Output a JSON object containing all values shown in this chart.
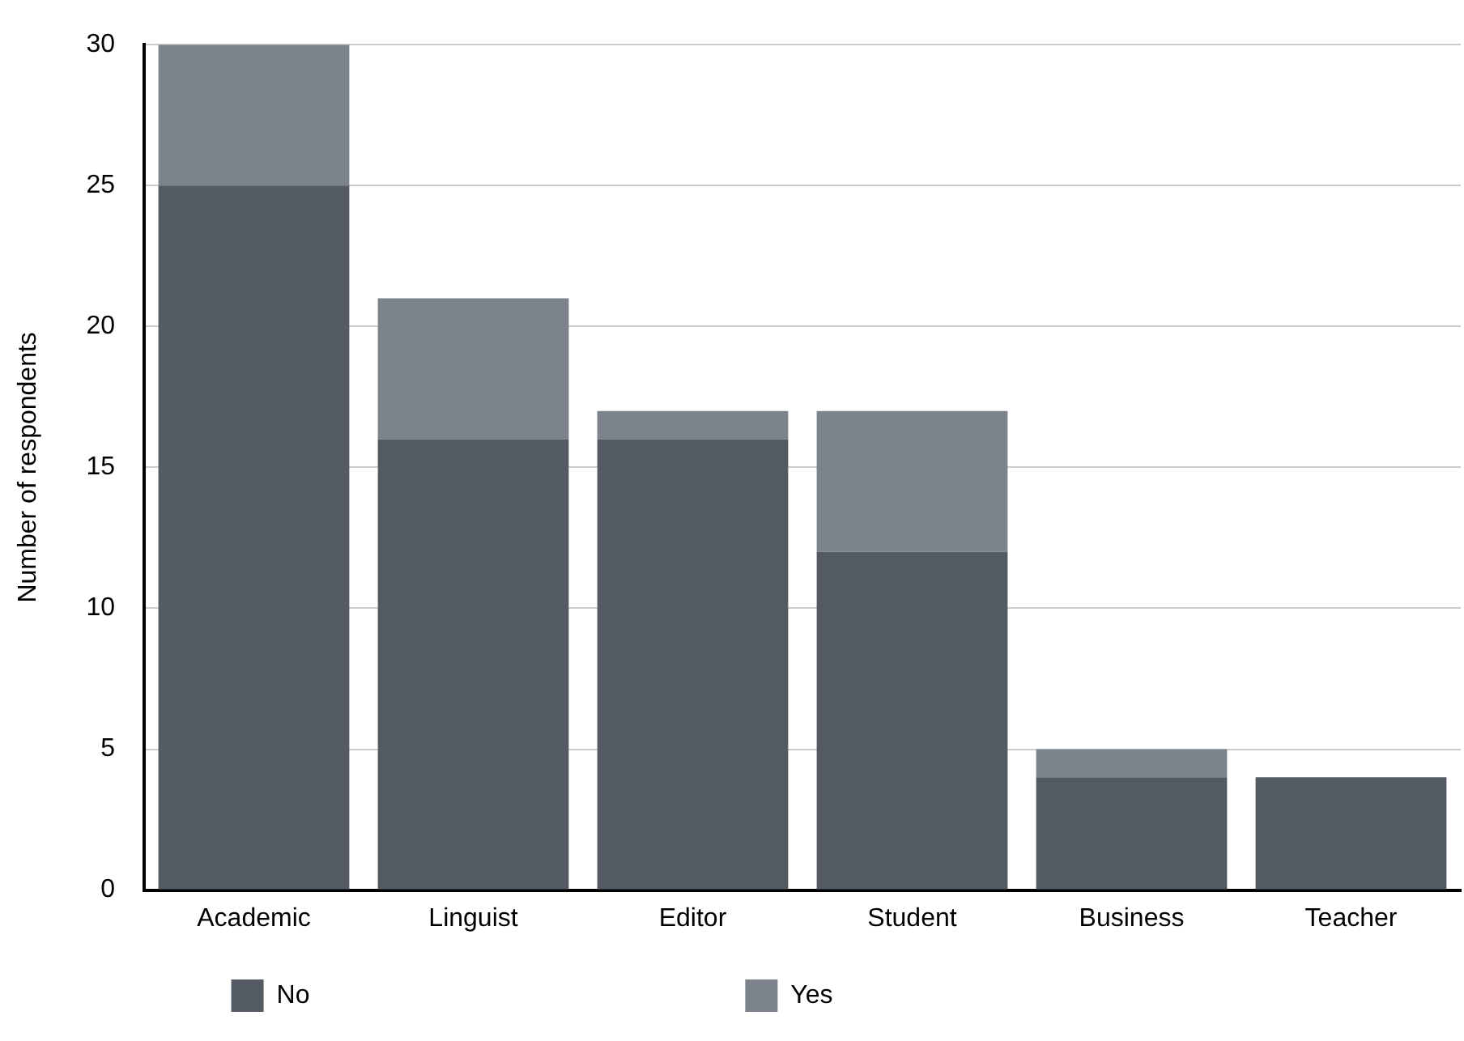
{
  "chart_data": {
    "type": "bar",
    "stacked": true,
    "ylabel": "Number of respondents",
    "categories": [
      "Academic",
      "Linguist",
      "Editor",
      "Student",
      "Business",
      "Teacher"
    ],
    "series": [
      {
        "name": "No",
        "color": "#545a61",
        "values": [
          25,
          16,
          16,
          12,
          4,
          4
        ]
      },
      {
        "name": "Yes",
        "color": "#7c838b",
        "values": [
          5,
          5,
          1,
          5,
          1,
          0
        ]
      }
    ],
    "ylim": [
      0,
      30
    ],
    "yticks": [
      0,
      5,
      10,
      15,
      20,
      25,
      30
    ],
    "grid": "y",
    "legend": "bottom"
  }
}
